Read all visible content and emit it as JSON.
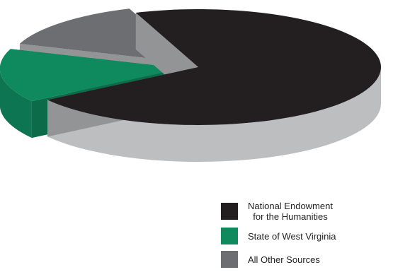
{
  "chart_data": {
    "type": "pie",
    "style": "3d-exploded",
    "title": "",
    "series": [
      {
        "name": "National Endowment\nfor the Humanities",
        "value": 71,
        "color": "#231f20"
      },
      {
        "name": "State of West Virginia",
        "value": 15,
        "color": "#0f8a5f"
      },
      {
        "name": "All Other Sources",
        "value": 14,
        "color": "#6d6e71"
      }
    ],
    "legend_position": "bottom-right",
    "side_color": "#bcbec0"
  }
}
